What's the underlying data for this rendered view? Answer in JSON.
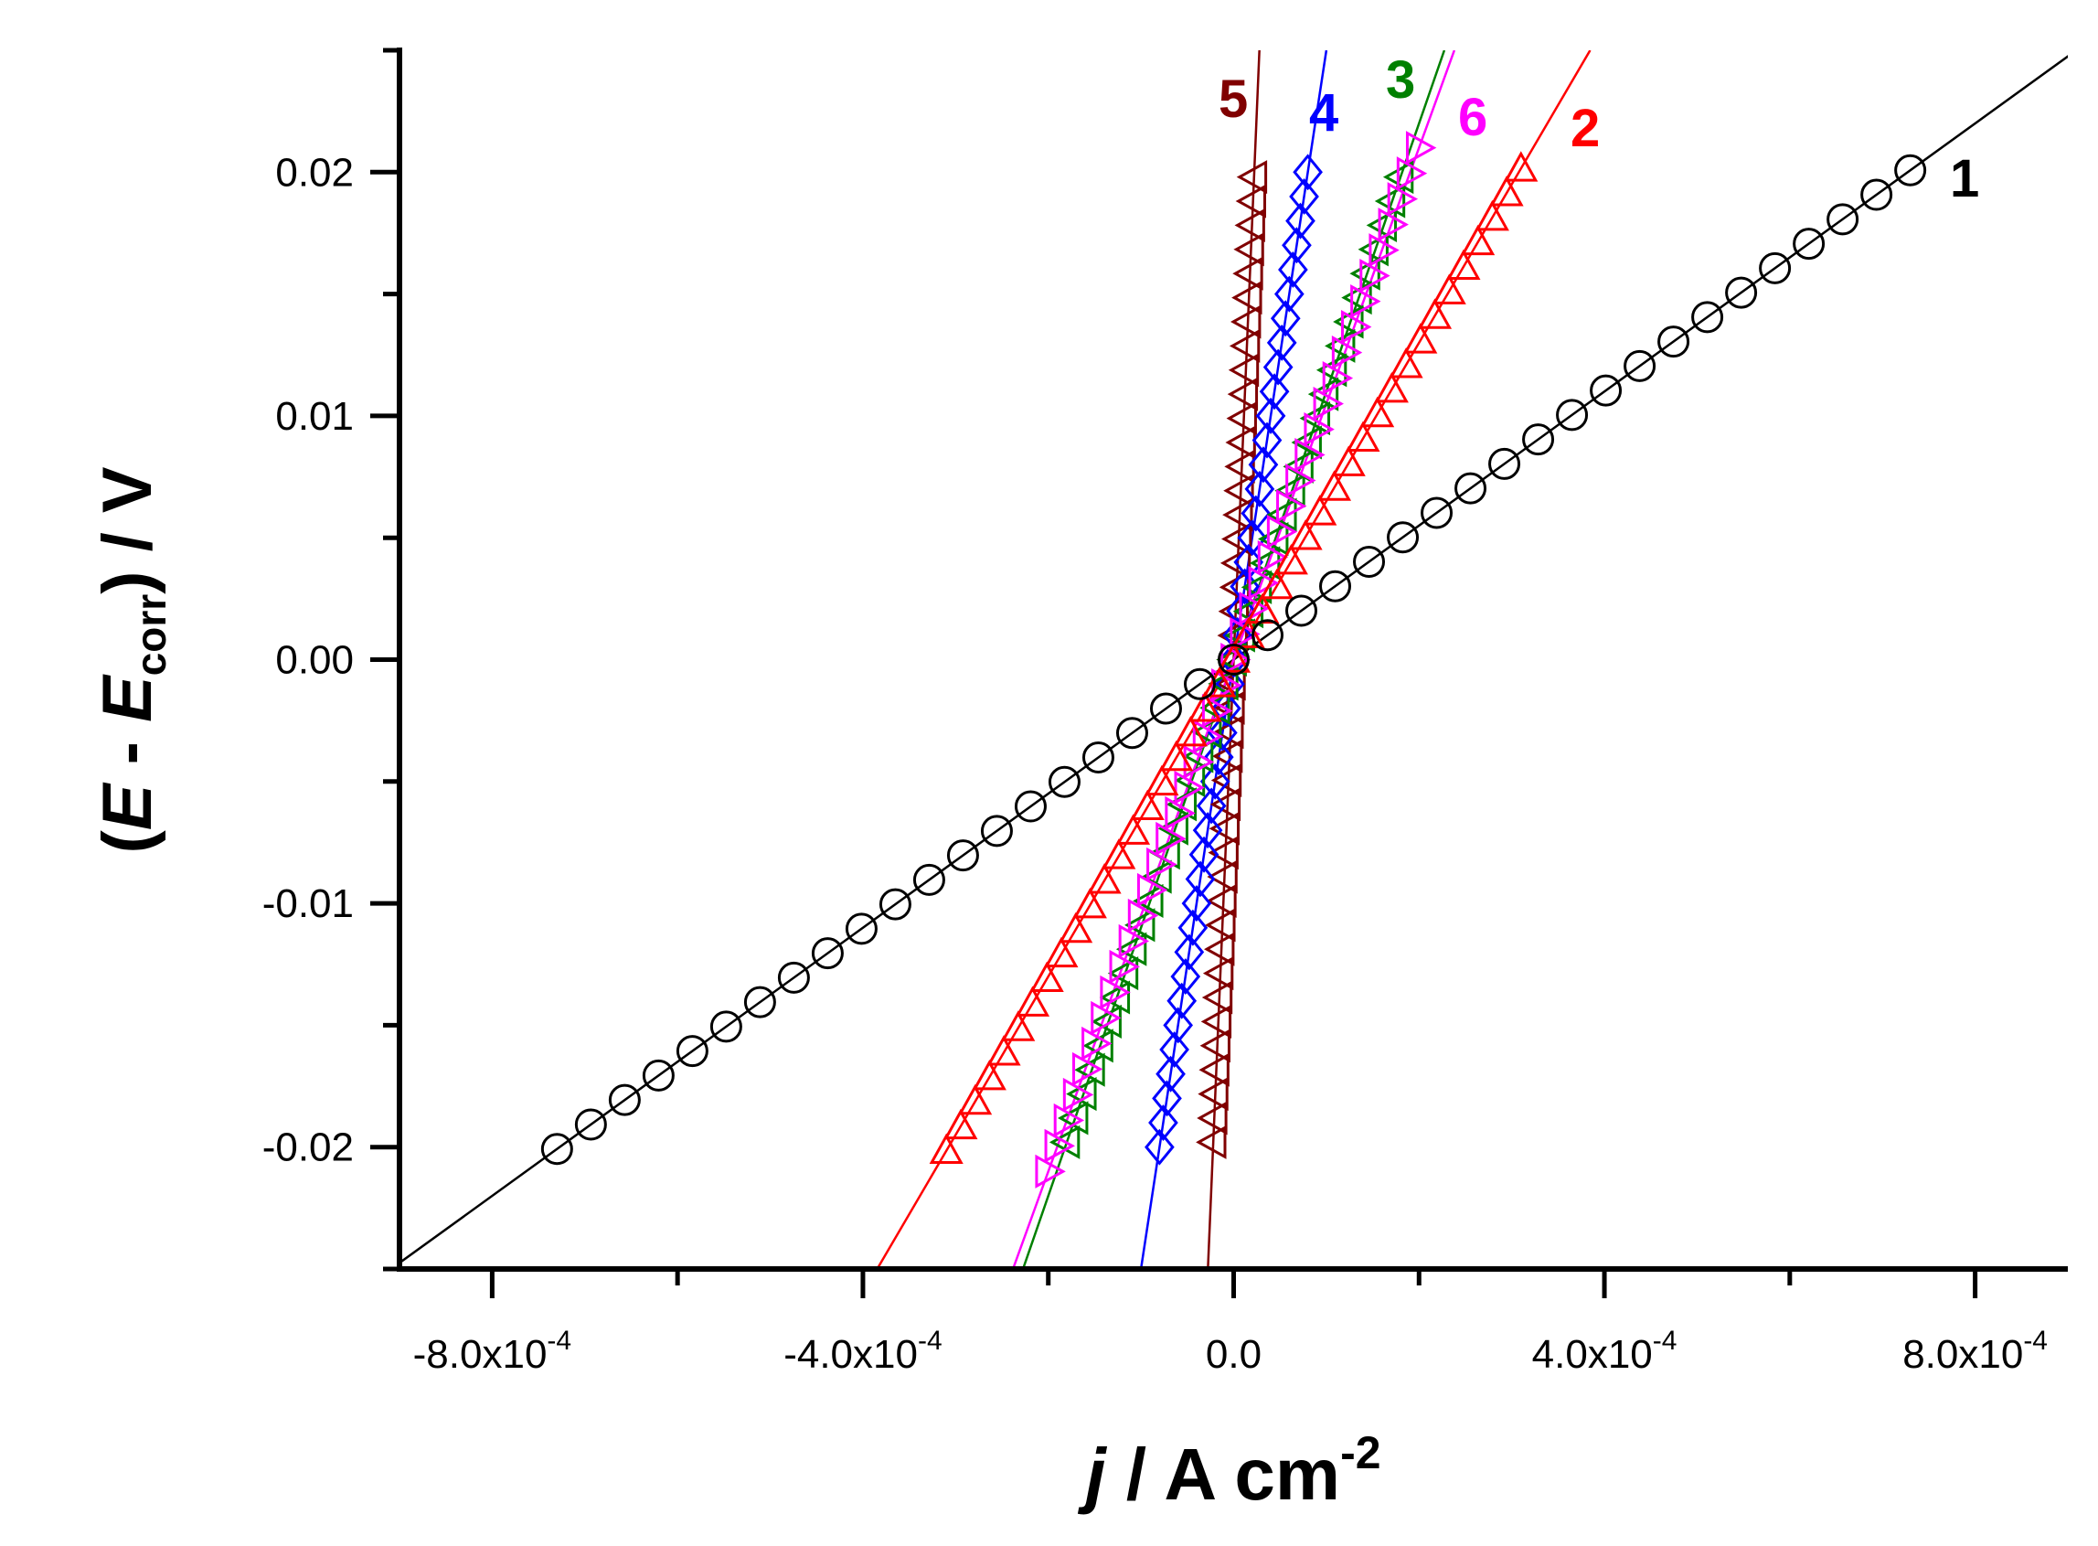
{
  "chart_data": {
    "type": "line",
    "title": "",
    "xlabel": {
      "var": "j",
      "unit": " / A cm",
      "exp": "-2"
    },
    "ylabel": {
      "open": "(",
      "var": "E",
      "mid": " - ",
      "var2": "E",
      "sub": "corr",
      "close": ") / V"
    },
    "xlim": [
      -0.0009,
      0.0009
    ],
    "ylim": [
      -0.025,
      0.025
    ],
    "x_ticks": [
      {
        "value": -0.0008,
        "mant": "-8.0x10",
        "exp": "-4"
      },
      {
        "value": -0.0004,
        "mant": "-4.0x10",
        "exp": "-4"
      },
      {
        "value": 0.0,
        "mant": "0.0",
        "exp": ""
      },
      {
        "value": 0.0004,
        "mant": "4.0x10",
        "exp": "-4"
      },
      {
        "value": 0.0008,
        "mant": "8.0x10",
        "exp": "-4"
      }
    ],
    "y_ticks": [
      {
        "value": 0.02,
        "label": "0.02"
      },
      {
        "value": 0.01,
        "label": "0.01"
      },
      {
        "value": 0.0,
        "label": "0.00"
      },
      {
        "value": -0.01,
        "label": "-0.01"
      },
      {
        "value": -0.02,
        "label": "-0.02"
      }
    ],
    "series": [
      {
        "name": "1",
        "color": "#000000",
        "marker": "circle",
        "slope": 27.5,
        "x_range": [
          -0.00073,
          0.00073
        ]
      },
      {
        "name": "2",
        "color": "#ff0000",
        "marker": "triangle-up",
        "slope": 65,
        "x_range": [
          -0.00031,
          0.00031
        ]
      },
      {
        "name": "3",
        "color": "#008000",
        "marker": "triangle-left",
        "slope": 110,
        "x_range": [
          -0.00018,
          0.00018
        ]
      },
      {
        "name": "4",
        "color": "#0000ff",
        "marker": "diamond",
        "slope": 250,
        "x_range": [
          -8e-05,
          8e-05
        ]
      },
      {
        "name": "5",
        "color": "#800000",
        "marker": "triangle-left",
        "slope": 900,
        "x_range": [
          -2.2e-05,
          2.2e-05
        ]
      },
      {
        "name": "6",
        "color": "#ff00ff",
        "marker": "triangle-right",
        "slope": 105,
        "x_range": [
          -0.0002,
          0.0002
        ]
      }
    ],
    "point_count": 41,
    "legend": "inline labels near curve ends"
  }
}
